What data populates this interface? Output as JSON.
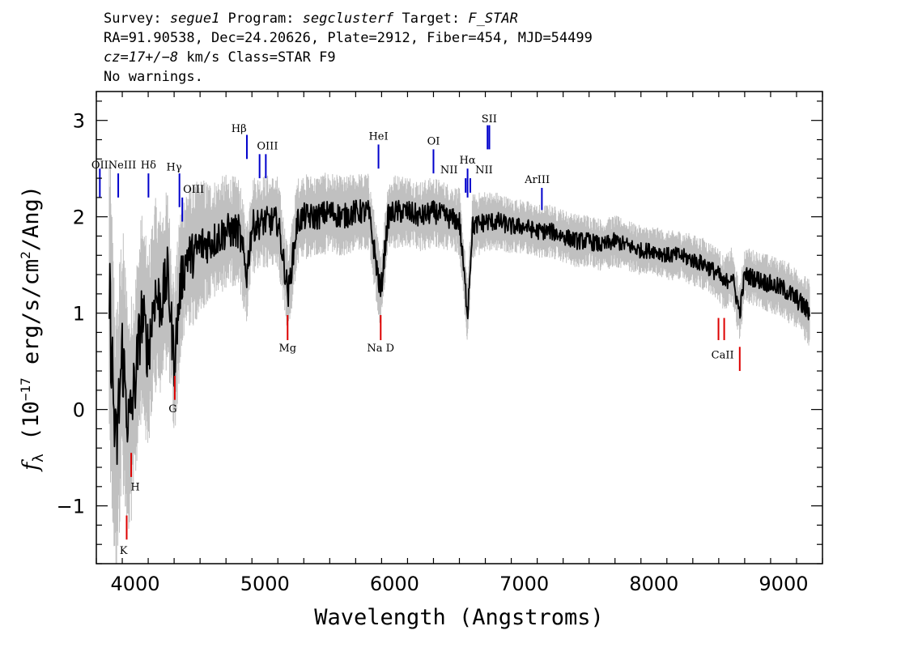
{
  "header": {
    "line1": {
      "survey_label": "Survey: ",
      "survey": "segue1",
      "program_label": " Program: ",
      "program": "segclusterf",
      "target_label": " Target: ",
      "target": "F_STAR"
    },
    "line2": "RA=91.90538, Dec=24.20626, Plate=2912, Fiber=454, MJD=54499",
    "line3": {
      "cz": "cz=17+/−8",
      "rest": " km/s Class=STAR F9"
    },
    "line4": "No warnings."
  },
  "chart_data": {
    "type": "line",
    "xlabel": "Wavelength (Angstroms)",
    "ylabel_symbol": "f",
    "ylabel_sub": "λ",
    "ylabel_pre": " (10",
    "ylabel_exp": "−17",
    "ylabel_mid": " erg/s/cm",
    "ylabel_exp2": "2",
    "ylabel_post": "/Ang)",
    "xlim": [
      3700,
      9300
    ],
    "ylim": [
      -1.6,
      3.3
    ],
    "x_ticks": [
      4000,
      5000,
      6000,
      7000,
      8000,
      9000
    ],
    "x_tick_labels": [
      "4000",
      "5000",
      "6000",
      "7000",
      "8000",
      "9000"
    ],
    "y_ticks": [
      -1,
      0,
      1,
      2,
      3
    ],
    "y_tick_labels": [
      "−1",
      "0",
      "1",
      "2",
      "3"
    ],
    "colors": {
      "flux": "#000000",
      "error_band": "#c0c0c0",
      "emission_lines": "#0000cc",
      "absorption_lines": "#dd0000"
    },
    "series": [
      {
        "role": "flux (smoothed)",
        "x": [
          3800,
          3850,
          3900,
          3950,
          4000,
          4050,
          4100,
          4150,
          4200,
          4250,
          4300,
          4350,
          4400,
          4450,
          4500,
          4600,
          4700,
          4800,
          4860,
          4900,
          5000,
          5100,
          5180,
          5250,
          5300,
          5400,
          5500,
          5600,
          5700,
          5800,
          5893,
          5950,
          6000,
          6100,
          6200,
          6300,
          6400,
          6500,
          6563,
          6600,
          6700,
          6800,
          6900,
          7000,
          7100,
          7200,
          7300,
          7400,
          7500,
          7600,
          7700,
          7800,
          7900,
          8000,
          8100,
          8200,
          8300,
          8400,
          8498,
          8542,
          8600,
          8662,
          8700,
          8800,
          8900,
          9000,
          9100,
          9200
        ],
        "y": [
          1.2,
          -0.5,
          0.6,
          -0.2,
          0.3,
          1.0,
          0.6,
          1.2,
          1.1,
          1.4,
          0.5,
          1.3,
          1.6,
          1.6,
          1.7,
          1.75,
          1.85,
          1.85,
          1.4,
          1.9,
          1.95,
          1.95,
          1.2,
          1.95,
          2.0,
          2.0,
          2.05,
          2.0,
          2.05,
          2.05,
          1.2,
          2.0,
          2.05,
          2.05,
          2.0,
          2.05,
          2.0,
          1.95,
          1.0,
          1.9,
          1.95,
          1.95,
          1.9,
          1.9,
          1.85,
          1.85,
          1.8,
          1.75,
          1.75,
          1.7,
          1.75,
          1.7,
          1.65,
          1.65,
          1.6,
          1.6,
          1.55,
          1.5,
          1.4,
          1.3,
          1.4,
          1.0,
          1.4,
          1.35,
          1.3,
          1.25,
          1.15,
          1.0
        ]
      },
      {
        "role": "flux error envelope (±)",
        "x": [
          3800,
          4000,
          4200,
          4400,
          4600,
          5000,
          5500,
          6000,
          6500,
          7000,
          7500,
          8000,
          8500,
          9000,
          9200
        ],
        "y": [
          1.2,
          0.8,
          0.7,
          0.55,
          0.45,
          0.35,
          0.3,
          0.28,
          0.25,
          0.2,
          0.2,
          0.18,
          0.2,
          0.22,
          0.25
        ]
      }
    ],
    "emission_lines": [
      {
        "label": "OII",
        "x": 3727,
        "y0": 2.2,
        "y1": 2.5,
        "lx": 3727,
        "ly": 2.5
      },
      {
        "label": "NeIII",
        "x": 3869,
        "y0": 2.2,
        "y1": 2.45,
        "lx": 3900,
        "ly": 2.5
      },
      {
        "label": "Hδ",
        "x": 4102,
        "y0": 2.2,
        "y1": 2.45,
        "lx": 4102,
        "ly": 2.5
      },
      {
        "label": "Hγ",
        "x": 4341,
        "y0": 2.1,
        "y1": 2.45,
        "lx": 4300,
        "ly": 2.48
      },
      {
        "label": "OIII",
        "x": 4363,
        "y0": 1.95,
        "y1": 2.2,
        "lx": 4450,
        "ly": 2.25
      },
      {
        "label": "Hβ",
        "x": 4861,
        "y0": 2.6,
        "y1": 2.85,
        "lx": 4800,
        "ly": 2.88
      },
      {
        "label": "OIII",
        "x": 4959,
        "y0": 2.4,
        "y1": 2.65,
        "lx": 5020,
        "ly": 2.7
      },
      {
        "label": "OIII",
        "x": 5007,
        "y0": 2.4,
        "y1": 2.65,
        "lx": 5020,
        "ly": 2.7
      },
      {
        "label": "HeI",
        "x": 5876,
        "y0": 2.5,
        "y1": 2.75,
        "lx": 5876,
        "ly": 2.8
      },
      {
        "label": "OI",
        "x": 6300,
        "y0": 2.45,
        "y1": 2.7,
        "lx": 6300,
        "ly": 2.75
      },
      {
        "label": "NII",
        "x": 6548,
        "y0": 2.25,
        "y1": 2.4,
        "lx": 6420,
        "ly": 2.45
      },
      {
        "label": "Hα",
        "x": 6563,
        "y0": 2.2,
        "y1": 2.5,
        "lx": 6563,
        "ly": 2.55
      },
      {
        "label": "NII",
        "x": 6584,
        "y0": 2.25,
        "y1": 2.4,
        "lx": 6690,
        "ly": 2.45
      },
      {
        "label": "SII",
        "x": 6717,
        "y0": 2.7,
        "y1": 2.95,
        "lx": 6730,
        "ly": 2.98
      },
      {
        "label": "SII",
        "x": 6731,
        "y0": 2.7,
        "y1": 2.95,
        "lx": 6730,
        "ly": 2.98
      },
      {
        "label": "ArIII",
        "x": 7136,
        "y0": 2.07,
        "y1": 2.3,
        "lx": 7100,
        "ly": 2.35
      }
    ],
    "absorption_lines": [
      {
        "label": "K",
        "x": 3934,
        "y0": -1.35,
        "y1": -1.1,
        "lx": 3910,
        "ly": -1.5
      },
      {
        "label": "H",
        "x": 3969,
        "y0": -0.7,
        "y1": -0.45,
        "lx": 4000,
        "ly": -0.84
      },
      {
        "label": "G",
        "x": 4305,
        "y0": 0.1,
        "y1": 0.35,
        "lx": 4290,
        "ly": -0.03
      },
      {
        "label": "Mg",
        "x": 5175,
        "y0": 0.72,
        "y1": 0.98,
        "lx": 5175,
        "ly": 0.6
      },
      {
        "label": "Na D",
        "x": 5893,
        "y0": 0.72,
        "y1": 0.98,
        "lx": 5893,
        "ly": 0.6
      },
      {
        "label": "CaII",
        "x": 8498,
        "y0": 0.72,
        "y1": 0.95,
        "lx": 8530,
        "ly": 0.53
      },
      {
        "label": "CaII",
        "x": 8542,
        "y0": 0.72,
        "y1": 0.95,
        "lx": 8530,
        "ly": 0.53
      },
      {
        "label": "CaII",
        "x": 8662,
        "y0": 0.4,
        "y1": 0.65,
        "lx": 8530,
        "ly": 0.53
      }
    ]
  }
}
